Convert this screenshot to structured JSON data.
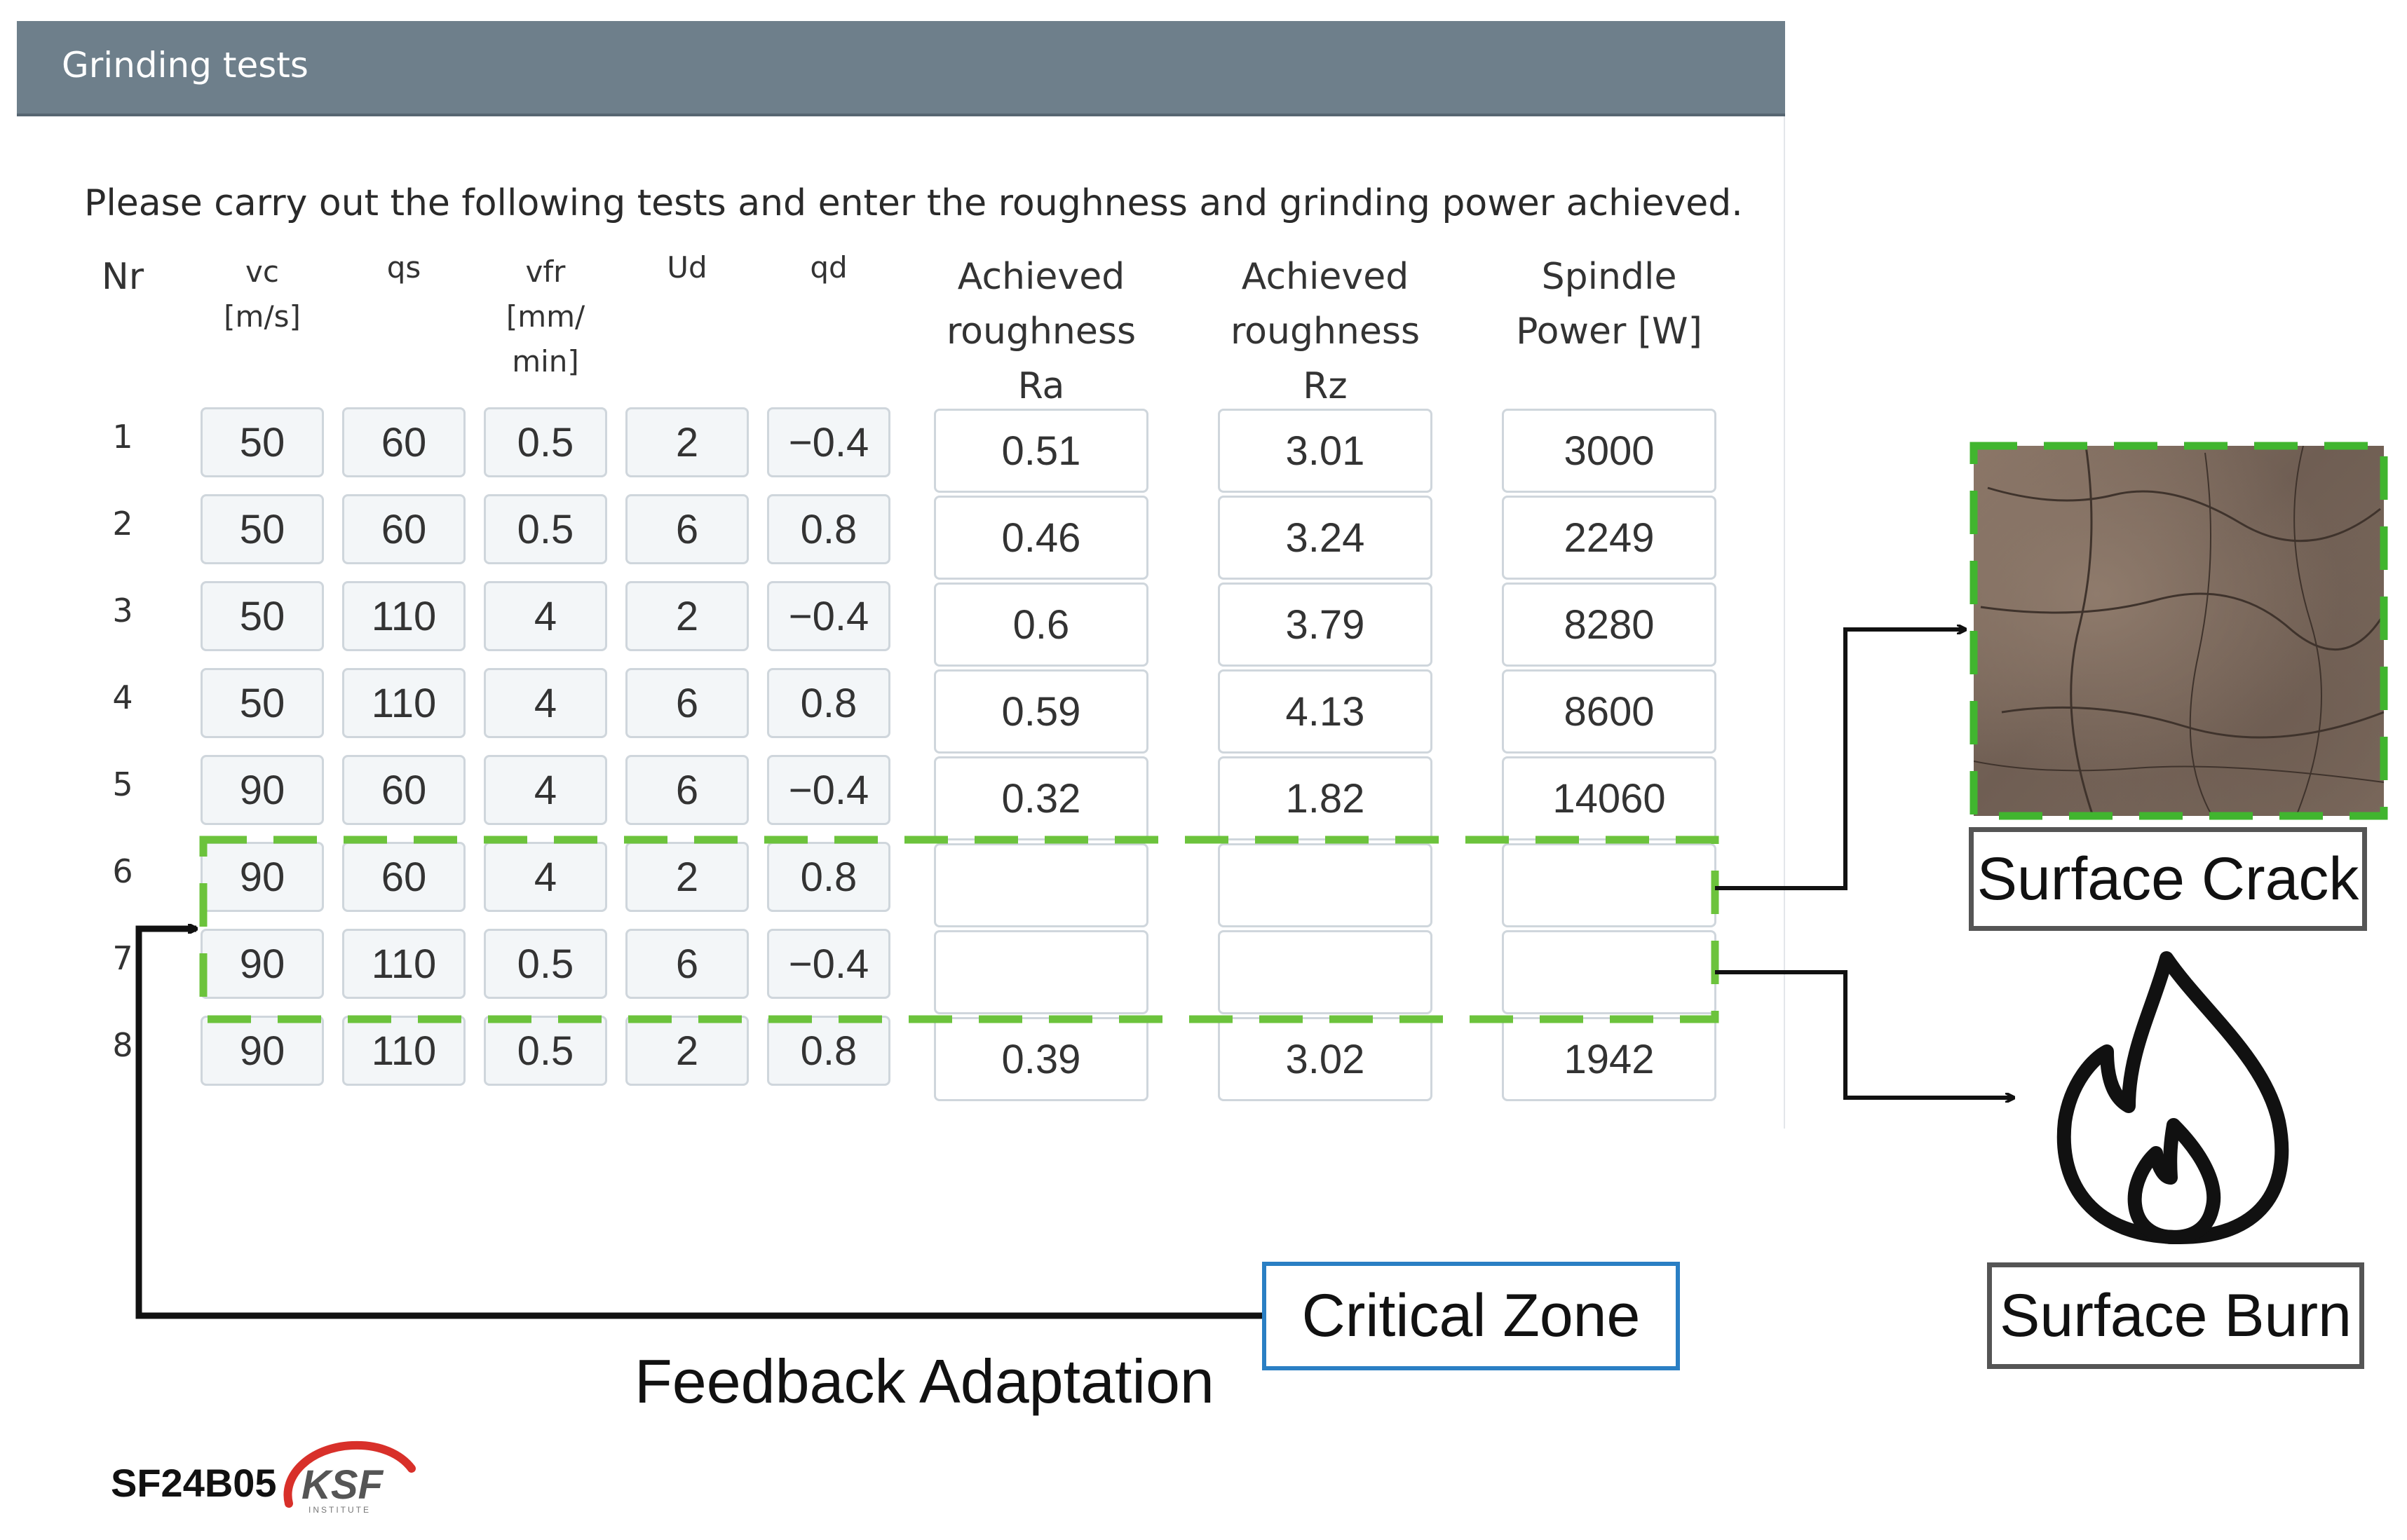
{
  "panel": {
    "title": "Grinding tests",
    "instructions": "Please carry out the following tests and enter the roughness and grinding power achieved."
  },
  "table": {
    "headers": {
      "nr": "Nr",
      "vc": [
        "vc",
        "[m/s]"
      ],
      "qs": [
        "qs"
      ],
      "vfr": [
        "vfr",
        "[mm/",
        "min]"
      ],
      "ud": [
        "Ud"
      ],
      "qd": [
        "qd"
      ],
      "ra": [
        "Achieved",
        "roughness",
        "Ra"
      ],
      "rz": [
        "Achieved",
        "roughness",
        "Rz"
      ],
      "power": [
        "Spindle",
        "Power [W]"
      ]
    },
    "rows": [
      {
        "nr": "1",
        "vc": "50",
        "qs": "60",
        "vfr": "0.5",
        "ud": "2",
        "qd": "−0.4",
        "ra": "0.51",
        "rz": "3.01",
        "power": "3000"
      },
      {
        "nr": "2",
        "vc": "50",
        "qs": "60",
        "vfr": "0.5",
        "ud": "6",
        "qd": "0.8",
        "ra": "0.46",
        "rz": "3.24",
        "power": "2249"
      },
      {
        "nr": "3",
        "vc": "50",
        "qs": "110",
        "vfr": "4",
        "ud": "2",
        "qd": "−0.4",
        "ra": "0.6",
        "rz": "3.79",
        "power": "8280"
      },
      {
        "nr": "4",
        "vc": "50",
        "qs": "110",
        "vfr": "4",
        "ud": "6",
        "qd": "0.8",
        "ra": "0.59",
        "rz": "4.13",
        "power": "8600"
      },
      {
        "nr": "5",
        "vc": "90",
        "qs": "60",
        "vfr": "4",
        "ud": "6",
        "qd": "−0.4",
        "ra": "0.32",
        "rz": "1.82",
        "power": "14060"
      },
      {
        "nr": "6",
        "vc": "90",
        "qs": "60",
        "vfr": "4",
        "ud": "2",
        "qd": "0.8",
        "ra": "",
        "rz": "",
        "power": ""
      },
      {
        "nr": "7",
        "vc": "90",
        "qs": "110",
        "vfr": "0.5",
        "ud": "6",
        "qd": "−0.4",
        "ra": "",
        "rz": "",
        "power": ""
      },
      {
        "nr": "8",
        "vc": "90",
        "qs": "110",
        "vfr": "0.5",
        "ud": "2",
        "qd": "0.8",
        "ra": "0.39",
        "rz": "3.02",
        "power": "1942"
      }
    ]
  },
  "annotations": {
    "surface_crack": "Surface Crack",
    "surface_burn": "Surface Burn",
    "critical_zone": "Critical Zone",
    "feedback_adaptation": "Feedback Adaptation",
    "code": "SF24B05",
    "logo_text": "KSF",
    "logo_subtext": "INSTITUTE"
  },
  "colors": {
    "header_bg": "#6e7f8b",
    "zone_dash": "#6cc33c",
    "critical_zone_border": "#2a7fc4"
  },
  "icons": {
    "burn": "flame-icon"
  }
}
